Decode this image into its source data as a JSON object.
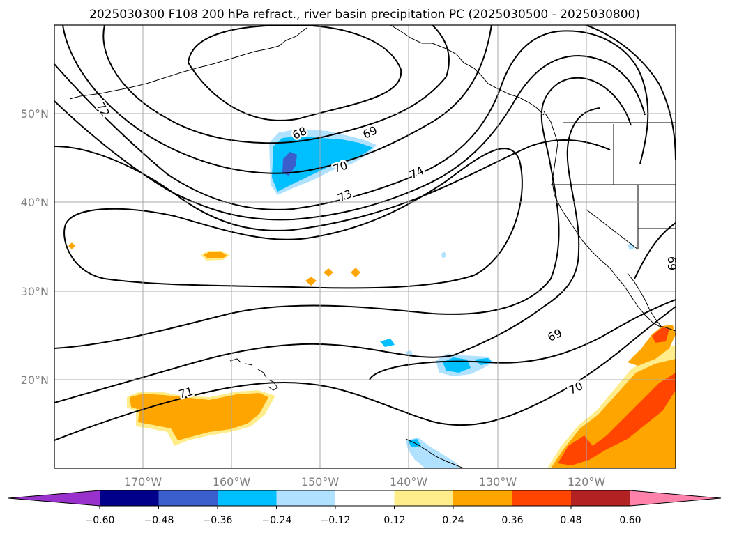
{
  "title": "2025030300 F108 200 hPa refract., river basin precipitation PC (2025030500 - 2025030800)",
  "lon_ticks": [
    "170°W",
    "160°W",
    "150°W",
    "140°W",
    "130°W",
    "120°W"
  ],
  "lat_ticks": [
    "50°N",
    "40°N",
    "30°N",
    "20°N"
  ],
  "colorbar": {
    "ticks": [
      "−0.60",
      "−0.48",
      "−0.36",
      "−0.24",
      "−0.12",
      "0.12",
      "0.24",
      "0.36",
      "0.48",
      "0.60"
    ],
    "colors": [
      "#9932cc",
      "#00008b",
      "#3a5fcd",
      "#00bfff",
      "#b0e2ff",
      "#ffffff",
      "#ffec8b",
      "#ffa500",
      "#ff4500",
      "#b22222",
      "#ff82ab"
    ]
  },
  "contour_labels": {
    "c68_top": "68",
    "c69_top": "69",
    "c70_top": "70",
    "c72_left": "72",
    "c73": "73",
    "c74": "74",
    "c69_right": "69",
    "c69_south": "69",
    "c70_south": "70",
    "c71_south": "71"
  }
}
